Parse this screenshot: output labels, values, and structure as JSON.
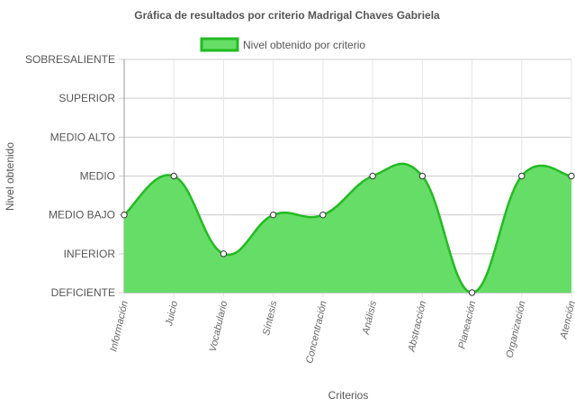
{
  "chart_data": {
    "type": "area",
    "title": "Gráfica de resultados por criterio Madrigal Chaves Gabriela",
    "xlabel": "Criterios",
    "ylabel": "Nivel obtenido",
    "y_levels": [
      "DEFICIENTE",
      "INFERIOR",
      "MEDIO BAJO",
      "MEDIO",
      "MEDIO ALTO",
      "SUPERIOR",
      "SOBRESALIENTE"
    ],
    "ylim": [
      0,
      6
    ],
    "categories": [
      "Información",
      "Juicio",
      "Vocabulario",
      "Síntesis",
      "Concentración",
      "Análisis",
      "Abstracción",
      "Planeación",
      "Organización",
      "Atención"
    ],
    "series": [
      {
        "name": "Nivel obtenido por criterio",
        "values": [
          2,
          3,
          1,
          2,
          2,
          3,
          3,
          0,
          3,
          3
        ]
      }
    ],
    "colors": {
      "fill": "#66dd66",
      "line": "#22bb22",
      "point_fill": "#ffffff",
      "point_stroke": "#333333",
      "grid": "#cccccc"
    },
    "grid": true,
    "legend_position": "top"
  }
}
